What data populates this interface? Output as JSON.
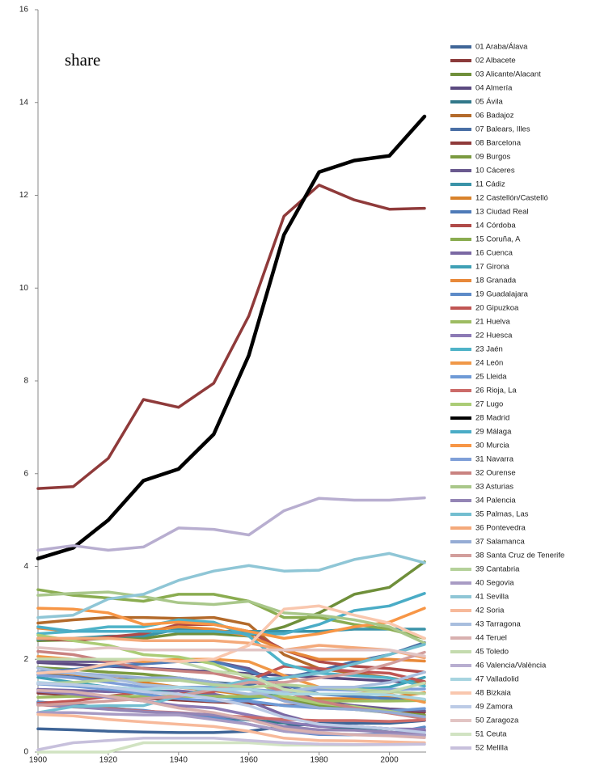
{
  "chart_data": {
    "type": "line",
    "title": "share",
    "x": [
      1900,
      1910,
      1920,
      1930,
      1940,
      1950,
      1960,
      1970,
      1980,
      1990,
      2000,
      2010
    ],
    "xlim": [
      1900,
      2010
    ],
    "xticks": [
      1900,
      1920,
      1940,
      1960,
      1980,
      2000
    ],
    "ylim": [
      0,
      16
    ],
    "yticks": [
      0,
      2,
      4,
      6,
      8,
      10,
      12,
      14,
      16
    ],
    "series": [
      {
        "name": "01 Araba/Álava",
        "color": "#3f6597",
        "values": [
          0.5,
          0.48,
          0.45,
          0.43,
          0.42,
          0.42,
          0.45,
          0.55,
          0.62,
          0.62,
          0.62,
          0.68
        ]
      },
      {
        "name": "02 Albacete",
        "color": "#8b3a3a",
        "values": [
          1.27,
          1.23,
          1.2,
          1.16,
          1.12,
          1.08,
          1.05,
          1.01,
          0.97,
          0.93,
          0.9,
          0.86
        ]
      },
      {
        "name": "03 Alicante/Alacant",
        "color": "#6f8f3a",
        "values": [
          2.4,
          2.42,
          2.45,
          2.45,
          2.55,
          2.55,
          2.5,
          2.7,
          3.0,
          3.4,
          3.55,
          4.1
        ]
      },
      {
        "name": "04 Almería",
        "color": "#5b4a80",
        "values": [
          1.93,
          1.89,
          1.85,
          1.81,
          1.77,
          1.73,
          1.69,
          1.65,
          1.61,
          1.57,
          1.53,
          1.49
        ]
      },
      {
        "name": "05 Ávila",
        "color": "#31788a",
        "values": [
          1.08,
          1.02,
          0.95,
          0.89,
          0.82,
          0.76,
          0.69,
          0.63,
          0.56,
          0.5,
          0.43,
          0.37
        ]
      },
      {
        "name": "06 Badajoz",
        "color": "#b36a2b",
        "values": [
          2.78,
          2.85,
          2.9,
          2.9,
          2.88,
          2.9,
          2.75,
          2.1,
          1.8,
          1.7,
          1.6,
          1.48
        ]
      },
      {
        "name": "07 Balears, Illes",
        "color": "#4a6fa5",
        "values": [
          1.67,
          1.62,
          1.58,
          1.55,
          1.55,
          1.5,
          1.45,
          1.6,
          1.75,
          1.95,
          2.1,
          2.36
        ]
      },
      {
        "name": "08 Barcelona",
        "color": "#8f3a3a",
        "values": [
          5.68,
          5.72,
          6.33,
          7.6,
          7.43,
          7.95,
          9.4,
          11.55,
          12.22,
          11.9,
          11.7,
          11.72
        ]
      },
      {
        "name": "09 Burgos",
        "color": "#7a9a40",
        "values": [
          1.82,
          1.78,
          1.72,
          1.68,
          1.6,
          1.5,
          1.37,
          1.15,
          1.0,
          0.92,
          0.85,
          0.8
        ]
      },
      {
        "name": "10 Cáceres",
        "color": "#6a5a8f",
        "values": [
          1.95,
          1.95,
          1.95,
          1.95,
          1.95,
          1.95,
          1.8,
          1.4,
          1.1,
          1.0,
          0.93,
          0.89
        ]
      },
      {
        "name": "11 Cádiz",
        "color": "#3a93a8",
        "values": [
          2.43,
          2.45,
          2.5,
          2.5,
          2.65,
          2.6,
          2.6,
          2.6,
          2.6,
          2.65,
          2.65,
          2.65
        ]
      },
      {
        "name": "12 Castellón/Castelló",
        "color": "#d9822b",
        "values": [
          1.72,
          1.68,
          1.6,
          1.5,
          1.4,
          1.32,
          1.23,
          1.15,
          1.15,
          1.15,
          1.18,
          1.28
        ]
      },
      {
        "name": "13 Ciudad Real",
        "color": "#4e7bb8",
        "values": [
          1.73,
          1.78,
          1.85,
          1.9,
          1.95,
          1.95,
          1.75,
          1.45,
          1.25,
          1.2,
          1.15,
          1.13
        ]
      },
      {
        "name": "14 Córdoba",
        "color": "#b04a48",
        "values": [
          2.45,
          2.4,
          2.48,
          2.55,
          2.75,
          2.75,
          2.6,
          2.2,
          1.95,
          1.85,
          1.8,
          1.72
        ]
      },
      {
        "name": "15 Coruña, A",
        "color": "#8aac50",
        "values": [
          3.5,
          3.38,
          3.32,
          3.25,
          3.4,
          3.4,
          3.25,
          2.9,
          2.9,
          2.75,
          2.65,
          2.45
        ]
      },
      {
        "name": "16 Cuenca",
        "color": "#7a68a3",
        "values": [
          1.35,
          1.33,
          1.3,
          1.3,
          1.32,
          1.25,
          1.1,
          0.8,
          0.6,
          0.55,
          0.5,
          0.46
        ]
      },
      {
        "name": "17 Girona",
        "color": "#3fa0b5",
        "values": [
          1.61,
          1.5,
          1.4,
          1.35,
          1.25,
          1.2,
          1.15,
          1.25,
          1.35,
          1.35,
          1.4,
          1.61
        ]
      },
      {
        "name": "18 Granada",
        "color": "#e8893a",
        "values": [
          2.67,
          2.6,
          2.6,
          2.6,
          2.7,
          2.65,
          2.5,
          2.2,
          2.0,
          2.0,
          2.0,
          1.96
        ]
      },
      {
        "name": "19 Guadalajara",
        "color": "#5d8bc8",
        "values": [
          1.08,
          1.0,
          0.94,
          0.9,
          0.8,
          0.75,
          0.6,
          0.45,
          0.38,
          0.37,
          0.4,
          0.54
        ]
      },
      {
        "name": "20 Gipuzkoa",
        "color": "#c05553",
        "values": [
          1.05,
          1.1,
          1.2,
          1.3,
          1.25,
          1.3,
          1.55,
          1.85,
          1.8,
          1.74,
          1.7,
          1.52
        ]
      },
      {
        "name": "21 Huelva",
        "color": "#9dbc62",
        "values": [
          1.18,
          1.2,
          1.2,
          1.2,
          1.2,
          1.2,
          1.2,
          1.2,
          1.1,
          1.1,
          1.1,
          1.11
        ]
      },
      {
        "name": "22 Huesca",
        "color": "#8c7ab5",
        "values": [
          1.31,
          1.25,
          1.18,
          1.1,
          1.0,
          0.95,
          0.8,
          0.65,
          0.55,
          0.55,
          0.5,
          0.49
        ]
      },
      {
        "name": "23 Jaén",
        "color": "#4fb3c8",
        "values": [
          2.55,
          2.6,
          2.7,
          2.7,
          2.85,
          2.8,
          2.5,
          1.9,
          1.7,
          1.65,
          1.6,
          1.42
        ]
      },
      {
        "name": "24 León",
        "color": "#f09848",
        "values": [
          2.06,
          2.0,
          2.0,
          1.95,
          2.0,
          2.0,
          1.95,
          1.65,
          1.4,
          1.35,
          1.25,
          1.07
        ]
      },
      {
        "name": "25 Lleida",
        "color": "#6e9ad6",
        "values": [
          1.47,
          1.42,
          1.35,
          1.25,
          1.15,
          1.1,
          1.1,
          1.0,
          0.95,
          0.92,
          0.88,
          0.94
        ]
      },
      {
        "name": "26 Rioja, La",
        "color": "#cc6b69",
        "values": [
          1.02,
          0.97,
          0.94,
          0.88,
          0.85,
          0.8,
          0.75,
          0.7,
          0.68,
          0.68,
          0.66,
          0.69
        ]
      },
      {
        "name": "27 Lugo",
        "color": "#abcc76",
        "values": [
          2.52,
          2.4,
          2.3,
          2.1,
          2.05,
          1.9,
          1.6,
          1.2,
          1.05,
          0.98,
          0.88,
          0.75
        ]
      },
      {
        "name": "28 Madrid",
        "color": "#000000",
        "values": [
          4.17,
          4.4,
          5.0,
          5.85,
          6.1,
          6.85,
          8.55,
          11.15,
          12.5,
          12.75,
          12.85,
          13.7
        ]
      },
      {
        "name": "29 Málaga",
        "color": "#4aacc6",
        "values": [
          2.7,
          2.6,
          2.6,
          2.6,
          2.6,
          2.6,
          2.55,
          2.55,
          2.75,
          3.05,
          3.15,
          3.42
        ]
      },
      {
        "name": "30 Murcia",
        "color": "#f79646",
        "values": [
          3.1,
          3.08,
          3.0,
          2.75,
          2.8,
          2.75,
          2.6,
          2.45,
          2.55,
          2.7,
          2.8,
          3.1
        ]
      },
      {
        "name": "31 Navarra",
        "color": "#7f9fd8",
        "values": [
          1.66,
          1.6,
          1.5,
          1.4,
          1.4,
          1.4,
          1.35,
          1.3,
          1.35,
          1.33,
          1.35,
          1.36
        ]
      },
      {
        "name": "32 Ourense",
        "color": "#c98280",
        "values": [
          2.17,
          2.1,
          1.95,
          1.8,
          1.75,
          1.7,
          1.55,
          1.3,
          1.1,
          0.95,
          0.84,
          0.72
        ]
      },
      {
        "name": "33 Asturias",
        "color": "#a9c78a",
        "values": [
          3.38,
          3.42,
          3.45,
          3.35,
          3.22,
          3.18,
          3.25,
          3.0,
          2.95,
          2.85,
          2.7,
          2.35
        ]
      },
      {
        "name": "34 Palencia",
        "color": "#9485b5",
        "values": [
          1.03,
          0.98,
          0.92,
          0.87,
          0.84,
          0.8,
          0.7,
          0.55,
          0.48,
          0.47,
          0.43,
          0.37
        ]
      },
      {
        "name": "35 Palmas, Las",
        "color": "#73bed0",
        "values": [
          0.85,
          0.98,
          1.0,
          1.0,
          1.2,
          1.4,
          1.55,
          1.6,
          1.7,
          1.9,
          2.1,
          2.32
        ]
      },
      {
        "name": "36 Pontevedra",
        "color": "#f4a97a",
        "values": [
          2.45,
          2.45,
          2.45,
          2.4,
          2.4,
          2.4,
          2.35,
          2.2,
          2.3,
          2.25,
          2.2,
          2.03
        ]
      },
      {
        "name": "37 Salamanca",
        "color": "#95acd5",
        "values": [
          1.73,
          1.7,
          1.65,
          1.6,
          1.6,
          1.5,
          1.35,
          1.1,
          0.95,
          0.92,
          0.86,
          0.76
        ]
      },
      {
        "name": "38 Santa Cruz de Tenerife",
        "color": "#d29e9c",
        "values": [
          1.01,
          1.05,
          1.1,
          1.15,
          1.2,
          1.35,
          1.5,
          1.5,
          1.6,
          1.7,
          1.9,
          2.15
        ]
      },
      {
        "name": "39 Cantabria",
        "color": "#b5d19a",
        "values": [
          1.48,
          1.5,
          1.55,
          1.55,
          1.55,
          1.45,
          1.4,
          1.45,
          1.4,
          1.35,
          1.3,
          1.26
        ]
      },
      {
        "name": "40 Segovia",
        "color": "#a89bc4",
        "values": [
          0.85,
          0.85,
          0.82,
          0.8,
          0.8,
          0.7,
          0.6,
          0.45,
          0.4,
          0.38,
          0.37,
          0.35
        ]
      },
      {
        "name": "41 Sevilla",
        "color": "#8fc6d6",
        "values": [
          2.9,
          2.95,
          3.3,
          3.4,
          3.7,
          3.9,
          4.02,
          3.9,
          3.92,
          4.15,
          4.28,
          4.08
        ]
      },
      {
        "name": "42 Soria",
        "color": "#f7b99a",
        "values": [
          0.81,
          0.78,
          0.7,
          0.65,
          0.6,
          0.55,
          0.45,
          0.3,
          0.25,
          0.24,
          0.22,
          0.2
        ]
      },
      {
        "name": "43 Tarragona",
        "color": "#a8bede",
        "values": [
          1.81,
          1.7,
          1.6,
          1.45,
          1.4,
          1.35,
          1.25,
          1.3,
          1.4,
          1.4,
          1.5,
          1.72
        ]
      },
      {
        "name": "44 Teruel",
        "color": "#d8b0af",
        "values": [
          1.33,
          1.3,
          1.2,
          1.1,
          0.95,
          0.85,
          0.7,
          0.5,
          0.42,
          0.37,
          0.35,
          0.31
        ]
      },
      {
        "name": "45 Toledo",
        "color": "#c4dbae",
        "values": [
          2.01,
          2.0,
          2.0,
          2.0,
          1.95,
          1.75,
          1.65,
          1.35,
          1.25,
          1.25,
          1.3,
          1.49
        ]
      },
      {
        "name": "46 Valencia/València",
        "color": "#b8aed0",
        "values": [
          4.35,
          4.45,
          4.35,
          4.42,
          4.83,
          4.8,
          4.68,
          5.2,
          5.47,
          5.43,
          5.43,
          5.48
        ]
      },
      {
        "name": "47 Valladolid",
        "color": "#a7d4e0",
        "values": [
          1.5,
          1.45,
          1.4,
          1.35,
          1.4,
          1.35,
          1.35,
          1.25,
          1.25,
          1.25,
          1.23,
          1.14
        ]
      },
      {
        "name": "48 Bizkaia",
        "color": "#f9c7ae",
        "values": [
          1.7,
          1.75,
          1.9,
          2.0,
          1.95,
          2.0,
          2.3,
          3.08,
          3.15,
          2.95,
          2.78,
          2.45
        ]
      },
      {
        "name": "49 Zamora",
        "color": "#bccbe6",
        "values": [
          1.48,
          1.45,
          1.4,
          1.3,
          1.25,
          1.15,
          1.0,
          0.75,
          0.6,
          0.55,
          0.5,
          0.42
        ]
      },
      {
        "name": "50 Zaragoza",
        "color": "#e2c4c3",
        "values": [
          2.25,
          2.2,
          2.25,
          2.2,
          2.2,
          2.2,
          2.2,
          2.2,
          2.2,
          2.2,
          2.2,
          2.07
        ]
      },
      {
        "name": "51 Ceuta",
        "color": "#d1e3c2",
        "values": [
          0,
          0,
          0,
          0.2,
          0.2,
          0.2,
          0.2,
          0.15,
          0.15,
          0.15,
          0.16,
          0.17
        ]
      },
      {
        "name": "52 Melilla",
        "color": "#c7c0dc",
        "values": [
          0.05,
          0.2,
          0.25,
          0.3,
          0.3,
          0.3,
          0.25,
          0.2,
          0.17,
          0.16,
          0.16,
          0.17
        ]
      }
    ]
  }
}
